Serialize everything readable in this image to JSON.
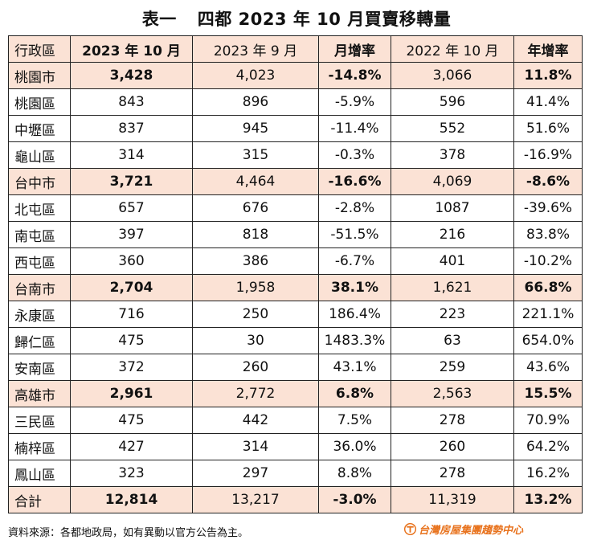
{
  "title": {
    "label": "表一",
    "text": "四都 2023 年 10 月買賣移轉量"
  },
  "headers": [
    "行政區",
    "2023 年 10 月",
    "2023 年 9 月",
    "月增率",
    "2022 年 10 月",
    "年增率"
  ],
  "rows": [
    {
      "type": "city",
      "name": "桃園市",
      "oct2023": "3,428",
      "sep2023": "4,023",
      "mom": "-14.8%",
      "oct2022": "3,066",
      "yoy": "11.8%"
    },
    {
      "type": "district",
      "name": "桃園區",
      "oct2023": "843",
      "sep2023": "896",
      "mom": "-5.9%",
      "oct2022": "596",
      "yoy": "41.4%"
    },
    {
      "type": "district",
      "name": "中壢區",
      "oct2023": "837",
      "sep2023": "945",
      "mom": "-11.4%",
      "oct2022": "552",
      "yoy": "51.6%"
    },
    {
      "type": "district",
      "name": "龜山區",
      "oct2023": "314",
      "sep2023": "315",
      "mom": "-0.3%",
      "oct2022": "378",
      "yoy": "-16.9%"
    },
    {
      "type": "city",
      "name": "台中市",
      "oct2023": "3,721",
      "sep2023": "4,464",
      "mom": "-16.6%",
      "oct2022": "4,069",
      "yoy": "-8.6%"
    },
    {
      "type": "district",
      "name": "北屯區",
      "oct2023": "657",
      "sep2023": "676",
      "mom": "-2.8%",
      "oct2022": "1087",
      "yoy": "-39.6%"
    },
    {
      "type": "district",
      "name": "南屯區",
      "oct2023": "397",
      "sep2023": "818",
      "mom": "-51.5%",
      "oct2022": "216",
      "yoy": "83.8%"
    },
    {
      "type": "district",
      "name": "西屯區",
      "oct2023": "360",
      "sep2023": "386",
      "mom": "-6.7%",
      "oct2022": "401",
      "yoy": "-10.2%"
    },
    {
      "type": "city",
      "name": "台南市",
      "oct2023": "2,704",
      "sep2023": "1,958",
      "mom": "38.1%",
      "oct2022": "1,621",
      "yoy": "66.8%"
    },
    {
      "type": "district",
      "name": "永康區",
      "oct2023": "716",
      "sep2023": "250",
      "mom": "186.4%",
      "oct2022": "223",
      "yoy": "221.1%"
    },
    {
      "type": "district",
      "name": "歸仁區",
      "oct2023": "475",
      "sep2023": "30",
      "mom": "1483.3%",
      "oct2022": "63",
      "yoy": "654.0%"
    },
    {
      "type": "district",
      "name": "安南區",
      "oct2023": "372",
      "sep2023": "260",
      "mom": "43.1%",
      "oct2022": "259",
      "yoy": "43.6%"
    },
    {
      "type": "city",
      "name": "高雄市",
      "oct2023": "2,961",
      "sep2023": "2,772",
      "mom": "6.8%",
      "oct2022": "2,563",
      "yoy": "15.5%"
    },
    {
      "type": "district",
      "name": "三民區",
      "oct2023": "475",
      "sep2023": "442",
      "mom": "7.5%",
      "oct2022": "278",
      "yoy": "70.9%"
    },
    {
      "type": "district",
      "name": "楠梓區",
      "oct2023": "427",
      "sep2023": "314",
      "mom": "36.0%",
      "oct2022": "260",
      "yoy": "64.2%"
    },
    {
      "type": "district",
      "name": "鳳山區",
      "oct2023": "323",
      "sep2023": "297",
      "mom": "8.8%",
      "oct2022": "278",
      "yoy": "16.2%"
    },
    {
      "type": "total",
      "name": "合計",
      "oct2023": "12,814",
      "sep2023": "13,217",
      "mom": "-3.0%",
      "oct2022": "11,319",
      "yoy": "13.2%"
    }
  ],
  "footer": {
    "source": "資料來源：各都地政局，如有異動以官方公告為主。"
  },
  "logo": {
    "text": "台灣房屋集團趨勢中心",
    "color": "#e8731e",
    "icon": "taiwan-house-logo-icon"
  },
  "colors": {
    "highlight": "#fbe2d5"
  }
}
